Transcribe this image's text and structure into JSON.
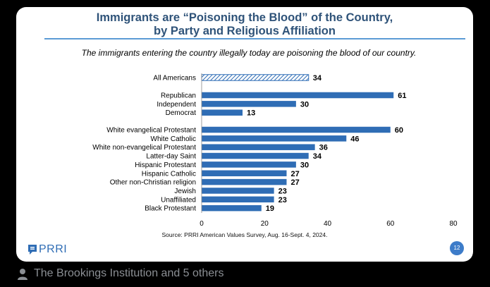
{
  "chart_data": {
    "type": "bar",
    "orientation": "horizontal",
    "title_line1": "Immigrants are “Poisoning the Blood” of the Country,",
    "title_line2": "by Party and Religious Affiliation",
    "subtitle": "The immigrants entering the country illegally today are poisoning the blood of our country.",
    "groups": [
      {
        "categories": [
          "All Americans"
        ],
        "values": [
          34
        ],
        "pattern": "hatched"
      },
      {
        "categories": [
          "Republican",
          "Independent",
          "Democrat"
        ],
        "values": [
          61,
          30,
          13
        ]
      },
      {
        "categories": [
          "White evangelical Protestant",
          "White Catholic",
          "White non-evangelical Protestant",
          "Latter-day Saint",
          "Hispanic Protestant",
          "Hispanic Catholic",
          "Other non-Christian religion",
          "Jewish",
          "Unaffiliated",
          "Black Protestant"
        ],
        "values": [
          60,
          46,
          36,
          34,
          30,
          27,
          27,
          23,
          23,
          19
        ]
      }
    ],
    "xlim": [
      0,
      80
    ],
    "xticks": [
      0,
      20,
      40,
      60,
      80
    ],
    "bar_color": "#2f6db5",
    "data_labels": true,
    "grid": false
  },
  "source": "Source: PRRI American Values Survey, Aug. 16-Sept. 4, 2024.",
  "logo": {
    "text": "PRRI",
    "icon": "prri-logo-icon"
  },
  "page_number": "12",
  "attribution": {
    "icon": "person-icon",
    "text": "The Brookings Institution and 5 others"
  }
}
